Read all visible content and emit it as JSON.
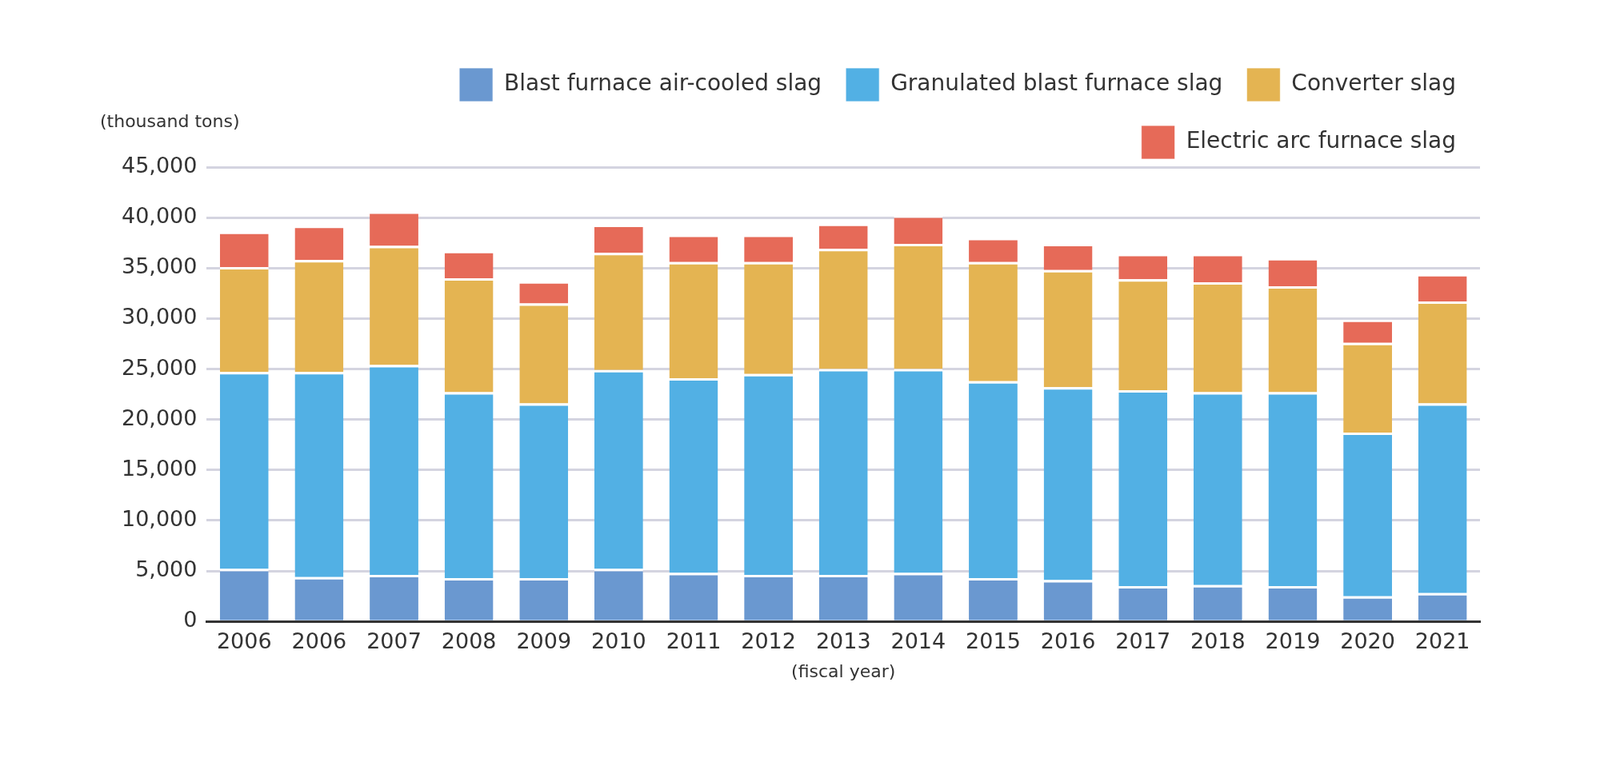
{
  "chart_data": {
    "type": "bar",
    "stacked": true,
    "grid": true,
    "legend": "top-right",
    "y_label": "(thousand tons)",
    "x_label": "(fiscal year)",
    "categories": [
      "2006",
      "2006",
      "2007",
      "2008",
      "2009",
      "2010",
      "2011",
      "2012",
      "2013",
      "2014",
      "2015",
      "2016",
      "2017",
      "2018",
      "2019",
      "2020",
      "2021"
    ],
    "series": [
      {
        "name": "Blast furnace air-cooled slag",
        "color": "#6a98d0",
        "values": [
          5200,
          4400,
          4600,
          4300,
          4300,
          5200,
          4800,
          4600,
          4600,
          4800,
          4300,
          4100,
          3500,
          3600,
          3500,
          2500,
          2800
        ]
      },
      {
        "name": "Granulated blast furnace slag",
        "color": "#52b0e4",
        "values": [
          19500,
          20300,
          20800,
          18400,
          17300,
          19700,
          19300,
          19900,
          20400,
          20200,
          19500,
          19100,
          19400,
          19100,
          19200,
          16200,
          18800
        ]
      },
      {
        "name": "Converter slag",
        "color": "#e4b452",
        "values": [
          10400,
          11100,
          11800,
          11300,
          9900,
          11600,
          11500,
          11100,
          11900,
          12400,
          11800,
          11600,
          11000,
          10900,
          10500,
          8900,
          10100
        ]
      },
      {
        "name": "Electric arc furnace slag",
        "color": "#e66a58",
        "values": [
          3500,
          3400,
          3400,
          2700,
          2200,
          2800,
          2700,
          2700,
          2500,
          2800,
          2400,
          2600,
          2500,
          2800,
          2800,
          2300,
          2700
        ]
      }
    ],
    "ylim": [
      0,
      45000
    ],
    "yticks": [
      0,
      {
        "value": 5000,
        "label": "5,000"
      },
      {
        "value": 10000,
        "label": "10,000"
      },
      {
        "value": 15000,
        "label": "15,000"
      },
      {
        "value": 20000,
        "label": "20,000"
      },
      {
        "value": 25000,
        "label": "25,000"
      },
      {
        "value": 30000,
        "label": "30,000"
      },
      {
        "value": 35000,
        "label": "35,000"
      },
      {
        "value": 40000,
        "label": "40,000"
      },
      {
        "value": 45000,
        "label": "45,000"
      }
    ]
  }
}
